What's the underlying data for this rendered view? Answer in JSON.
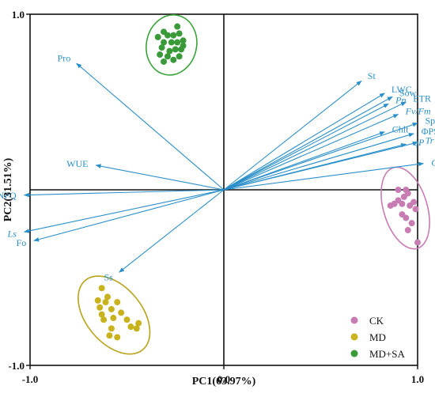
{
  "chart_data": {
    "type": "scatter",
    "subtype": "pca-biplot",
    "xlabel": "PC1(63.97%)",
    "ylabel": "PC2(31.51%)",
    "xlim": [
      -1.0,
      1.0
    ],
    "ylim": [
      -1.0,
      1.0
    ],
    "x_ticks": [
      {
        "value": -1.0,
        "label": "-1.0"
      },
      {
        "value": 0.0,
        "label": "0.0"
      },
      {
        "value": 1.0,
        "label": "1.0"
      }
    ],
    "y_ticks": [
      {
        "value": 1.0,
        "label": "1.0"
      },
      {
        "value": -1.0,
        "label": "-1.0"
      }
    ],
    "grid": false,
    "legend_position": "bottom-right",
    "loadings": [
      {
        "name": "Pro",
        "x": -0.76,
        "y": 0.72,
        "italic": false
      },
      {
        "name": "WUE",
        "x": -0.66,
        "y": 0.14,
        "italic": false
      },
      {
        "name": "NPQ",
        "x": -1.03,
        "y": -0.03,
        "italic": false
      },
      {
        "name": "Ls",
        "x": -1.03,
        "y": -0.24,
        "italic": true
      },
      {
        "name": "Fo",
        "x": -0.98,
        "y": -0.29,
        "italic": false
      },
      {
        "name": "Ss",
        "x": -0.54,
        "y": -0.47,
        "italic": false
      },
      {
        "name": "St",
        "x": 0.71,
        "y": 0.62,
        "italic": false
      },
      {
        "name": "LWC",
        "x": 0.83,
        "y": 0.55,
        "italic": false
      },
      {
        "name": "Sow",
        "x": 0.87,
        "y": 0.53,
        "italic": false
      },
      {
        "name": "Pn",
        "x": 0.85,
        "y": 0.49,
        "italic": true
      },
      {
        "name": "ETR",
        "x": 0.94,
        "y": 0.5,
        "italic": false
      },
      {
        "name": "Fv/Fm",
        "x": 0.9,
        "y": 0.43,
        "italic": true
      },
      {
        "name": "Chlt",
        "x": 0.83,
        "y": 0.33,
        "italic": false
      },
      {
        "name": "Sp",
        "x": 1.0,
        "y": 0.38,
        "italic": false
      },
      {
        "name": "ΦPSII",
        "x": 0.98,
        "y": 0.32,
        "italic": false
      },
      {
        "name": "qP",
        "x": 0.94,
        "y": 0.26,
        "italic": true
      },
      {
        "name": "Tr",
        "x": 1.0,
        "y": 0.27,
        "italic": true
      },
      {
        "name": "Gs",
        "x": 1.03,
        "y": 0.15,
        "italic": true
      }
    ],
    "series": [
      {
        "name": "CK",
        "color": "#c77cb2",
        "ellipse_color": "#c77cb2",
        "points": [
          [
            0.9,
            0.0
          ],
          [
            0.94,
            0.0
          ],
          [
            0.95,
            -0.02
          ],
          [
            0.93,
            -0.04
          ],
          [
            0.9,
            -0.06
          ],
          [
            0.88,
            -0.08
          ],
          [
            0.92,
            -0.08
          ],
          [
            0.96,
            -0.09
          ],
          [
            0.98,
            -0.07
          ],
          [
            0.99,
            -0.11
          ],
          [
            0.92,
            -0.14
          ],
          [
            0.94,
            -0.16
          ],
          [
            0.97,
            -0.19
          ],
          [
            0.95,
            -0.23
          ],
          [
            1.0,
            -0.3
          ],
          [
            0.86,
            -0.09
          ]
        ]
      },
      {
        "name": "MD",
        "color": "#c8b21e",
        "ellipse_color": "#b8a31a",
        "points": [
          [
            -0.63,
            -0.56
          ],
          [
            -0.6,
            -0.61
          ],
          [
            -0.65,
            -0.63
          ],
          [
            -0.61,
            -0.64
          ],
          [
            -0.55,
            -0.64
          ],
          [
            -0.64,
            -0.67
          ],
          [
            -0.58,
            -0.68
          ],
          [
            -0.63,
            -0.71
          ],
          [
            -0.53,
            -0.7
          ],
          [
            -0.57,
            -0.73
          ],
          [
            -0.5,
            -0.74
          ],
          [
            -0.62,
            -0.74
          ],
          [
            -0.44,
            -0.76
          ],
          [
            -0.48,
            -0.78
          ],
          [
            -0.58,
            -0.79
          ],
          [
            -0.45,
            -0.79
          ],
          [
            -0.55,
            -0.84
          ],
          [
            -0.59,
            -0.83
          ]
        ]
      },
      {
        "name": "MD+SA",
        "color": "#3a9a3a",
        "ellipse_color": "#3aa33a",
        "points": [
          [
            -0.31,
            0.9
          ],
          [
            -0.34,
            0.87
          ],
          [
            -0.29,
            0.88
          ],
          [
            -0.26,
            0.88
          ],
          [
            -0.23,
            0.89
          ],
          [
            -0.31,
            0.84
          ],
          [
            -0.27,
            0.84
          ],
          [
            -0.24,
            0.84
          ],
          [
            -0.21,
            0.85
          ],
          [
            -0.32,
            0.81
          ],
          [
            -0.28,
            0.79
          ],
          [
            -0.25,
            0.8
          ],
          [
            -0.22,
            0.8
          ],
          [
            -0.33,
            0.77
          ],
          [
            -0.29,
            0.76
          ],
          [
            -0.23,
            0.76
          ],
          [
            -0.26,
            0.74
          ],
          [
            -0.31,
            0.73
          ],
          [
            -0.21,
            0.82
          ],
          [
            -0.24,
            0.93
          ]
        ]
      }
    ]
  }
}
